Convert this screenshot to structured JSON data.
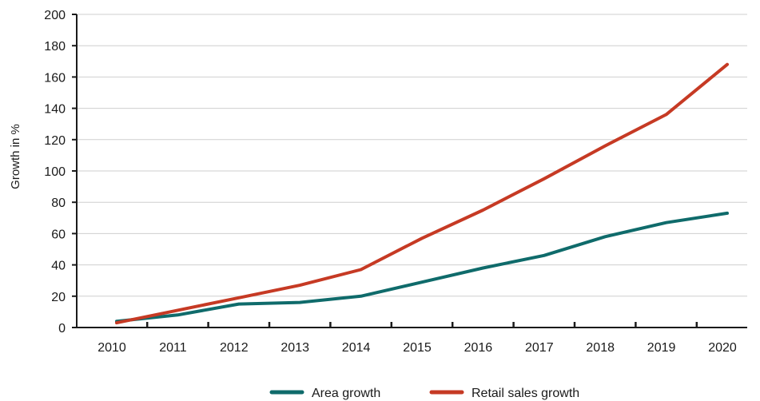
{
  "chart_data": {
    "type": "line",
    "title": "",
    "xlabel": "",
    "ylabel": "Growth in %",
    "categories": [
      "2010",
      "2011",
      "2012",
      "2013",
      "2014",
      "2015",
      "2016",
      "2017",
      "2018",
      "2019",
      "2020"
    ],
    "y_ticks": [
      "0",
      "20",
      "40",
      "60",
      "80",
      "100",
      "120",
      "140",
      "160",
      "180",
      "200"
    ],
    "ylim": [
      0,
      200
    ],
    "grid": "horizontal",
    "legend_position": "bottom",
    "series": [
      {
        "name": "Area growth",
        "color": "#0f6b6b",
        "values": [
          4,
          8,
          15,
          16,
          20,
          29,
          38,
          46,
          58,
          67,
          73
        ]
      },
      {
        "name": "Retail sales growth",
        "color": "#c63a24",
        "values": [
          3,
          11,
          19,
          27,
          37,
          57,
          75,
          95,
          116,
          136,
          168
        ]
      }
    ]
  }
}
